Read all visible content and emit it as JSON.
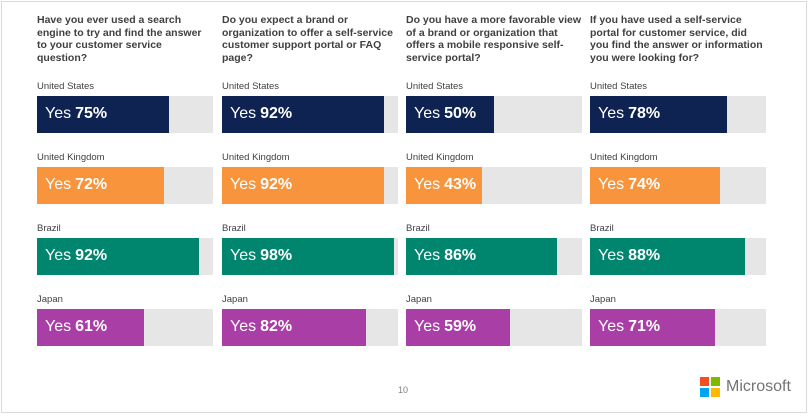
{
  "questions": [
    {
      "text": "Have you ever used a search engine to try and find the answer to your customer service question?",
      "rows": [
        {
          "country": "United States",
          "label": "Yes",
          "value": 75
        },
        {
          "country": "United Kingdom",
          "label": "Yes",
          "value": 72
        },
        {
          "country": "Brazil",
          "label": "Yes",
          "value": 92
        },
        {
          "country": "Japan",
          "label": "Yes",
          "value": 61
        }
      ]
    },
    {
      "text": "Do you expect a brand or organization to offer a self-service customer support portal or FAQ page?",
      "rows": [
        {
          "country": "United States",
          "label": "Yes",
          "value": 92
        },
        {
          "country": "United Kingdom",
          "label": "Yes",
          "value": 92
        },
        {
          "country": "Brazil",
          "label": "Yes",
          "value": 98
        },
        {
          "country": "Japan",
          "label": "Yes",
          "value": 82
        }
      ]
    },
    {
      "text": "Do you have a more favorable view of a brand or organization that offers a mobile responsive self-service portal?",
      "rows": [
        {
          "country": "United States",
          "label": "Yes",
          "value": 50
        },
        {
          "country": "United Kingdom",
          "label": "Yes",
          "value": 43
        },
        {
          "country": "Brazil",
          "label": "Yes",
          "value": 86
        },
        {
          "country": "Japan",
          "label": "Yes",
          "value": 59
        }
      ]
    },
    {
      "text": "If you have used a self-service portal for customer service, did you find the answer or information you were looking for?",
      "rows": [
        {
          "country": "United States",
          "label": "Yes",
          "value": 78
        },
        {
          "country": "United Kingdom",
          "label": "Yes",
          "value": 74
        },
        {
          "country": "Brazil",
          "label": "Yes",
          "value": 88
        },
        {
          "country": "Japan",
          "label": "Yes",
          "value": 71
        }
      ]
    }
  ],
  "chart_data": {
    "type": "bar",
    "categories": [
      "United States",
      "United Kingdom",
      "Brazil",
      "Japan"
    ],
    "series": [
      {
        "name": "Have you ever used a search engine to try and find the answer to your customer service question?",
        "values": [
          75,
          72,
          92,
          61
        ]
      },
      {
        "name": "Do you expect a brand or organization to offer a self-service customer support portal or FAQ page?",
        "values": [
          92,
          92,
          98,
          82
        ]
      },
      {
        "name": "Do you have a more favorable view of a brand or organization that offers a mobile responsive self-service portal?",
        "values": [
          50,
          43,
          86,
          59
        ]
      },
      {
        "name": "If you have used a self-service portal for customer service, did you find the answer or information you were looking for?",
        "values": [
          78,
          74,
          88,
          71
        ]
      }
    ],
    "ylim": [
      0,
      100
    ],
    "grid": false,
    "legend": "none"
  },
  "colors": {
    "United States": "#0f2352",
    "United Kingdom": "#f7943c",
    "Brazil": "#00856f",
    "Japan": "#a83ea6",
    "track": "#e6e6e6"
  },
  "footer": {
    "page_number": "10",
    "brand": "Microsoft",
    "logo_colors": [
      "#f25022",
      "#7fba00",
      "#00a4ef",
      "#ffb900"
    ]
  }
}
